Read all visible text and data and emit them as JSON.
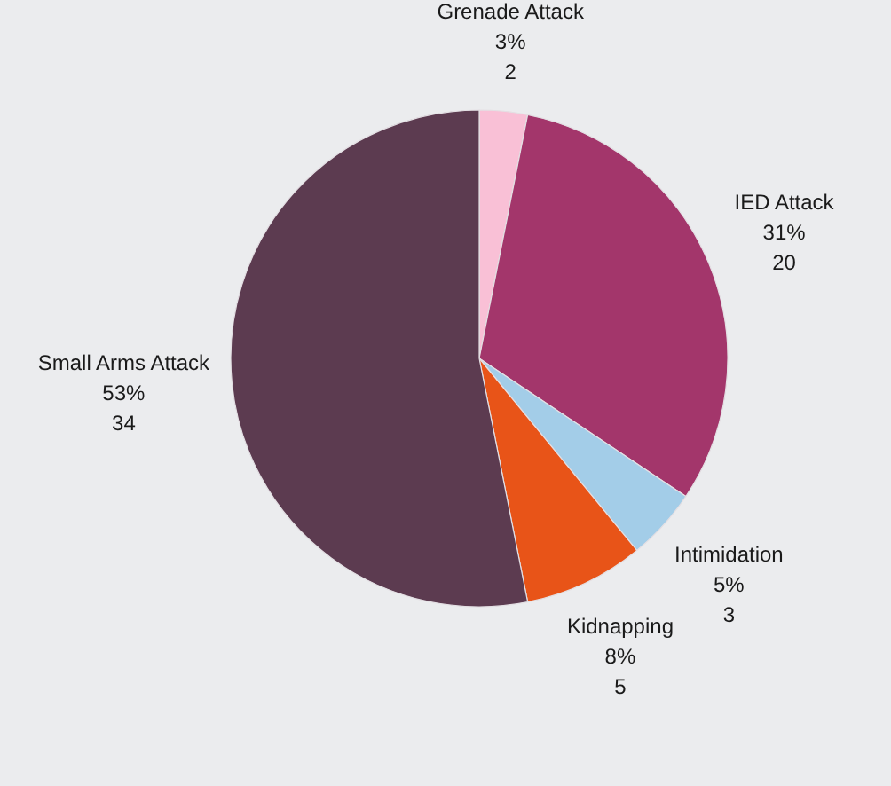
{
  "chart_data": {
    "type": "pie",
    "categories": [
      "Grenade Attack",
      "IED Attack",
      "Intimidation",
      "Kidnapping",
      "Small Arms Attack"
    ],
    "values": [
      2,
      20,
      3,
      5,
      34
    ],
    "value_labels": [
      "3%\n2",
      "31%\n20",
      "5%\n3",
      "8%\n5",
      "53%\n34"
    ],
    "colors": [
      "#f9c0d6",
      "#a3366b",
      "#a3cde8",
      "#e85418",
      "#5c3b50"
    ]
  }
}
